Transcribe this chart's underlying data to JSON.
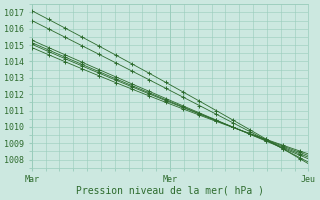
{
  "xlabel": "Pression niveau de la mer( hPa )",
  "xtick_labels": [
    "Mar",
    "Mer",
    "Jeu"
  ],
  "xtick_positions": [
    0,
    0.5,
    1.0
  ],
  "ylim": [
    1007.5,
    1017.5
  ],
  "ytick_values": [
    1008,
    1009,
    1010,
    1011,
    1012,
    1013,
    1014,
    1015,
    1016,
    1017
  ],
  "bg_color": "#cce8e0",
  "grid_color": "#99ccbb",
  "line_color": "#2d6b2d",
  "lines_start": [
    1017.1,
    1016.5,
    1015.3,
    1015.15,
    1015.05,
    1014.85
  ],
  "lines_end": [
    1007.75,
    1007.85,
    1008.05,
    1008.15,
    1008.25,
    1008.35
  ],
  "num_points": 100,
  "marker_every": 6,
  "linewidth": 0.6,
  "markersize": 3.5,
  "fontsize_tick": 6,
  "fontsize_label": 7
}
